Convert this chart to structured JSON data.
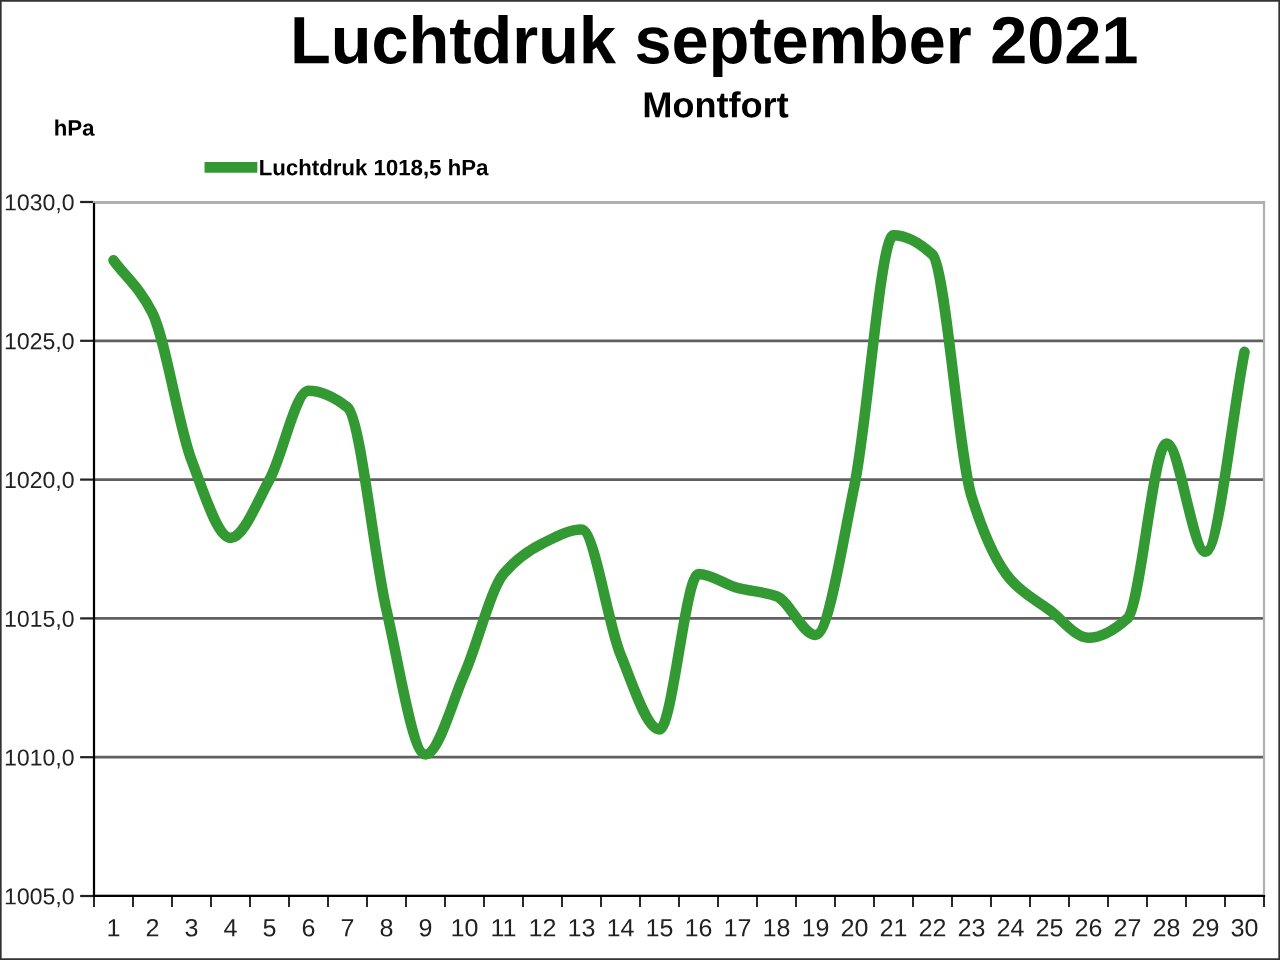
{
  "chart_data": {
    "type": "line",
    "title": "Luchtdruk september 2021",
    "subtitle": "Montfort",
    "ylabel": "hPa",
    "categories": [
      "1",
      "2",
      "3",
      "4",
      "5",
      "6",
      "7",
      "8",
      "9",
      "10",
      "11",
      "12",
      "13",
      "14",
      "15",
      "16",
      "17",
      "18",
      "19",
      "20",
      "21",
      "22",
      "23",
      "24",
      "25",
      "26",
      "27",
      "28",
      "29",
      "30"
    ],
    "series": [
      {
        "name": "Luchtdruk 1018,5 hPa",
        "color": "#339933",
        "values": [
          1027.9,
          1026.0,
          1020.7,
          1017.9,
          1020.0,
          1023.2,
          1022.6,
          1015.3,
          1010.1,
          1013.0,
          1016.6,
          1017.7,
          1018.2,
          1013.7,
          1011.0,
          1016.6,
          1016.1,
          1015.8,
          1014.4,
          1019.8,
          1028.8,
          1028.1,
          1019.4,
          1016.4,
          1015.3,
          1014.3,
          1015.0,
          1021.3,
          1017.4,
          1024.6
        ]
      }
    ],
    "ylim": [
      1005,
      1030
    ],
    "yticks": [
      {
        "value": 1005,
        "label": "1005,0"
      },
      {
        "value": 1010,
        "label": "1010,0"
      },
      {
        "value": 1015,
        "label": "1015,0"
      },
      {
        "value": 1020,
        "label": "1020,0"
      },
      {
        "value": 1025,
        "label": "1025,0"
      },
      {
        "value": 1030,
        "label": "1030,0"
      }
    ],
    "grid": "y",
    "legend": "top left"
  }
}
